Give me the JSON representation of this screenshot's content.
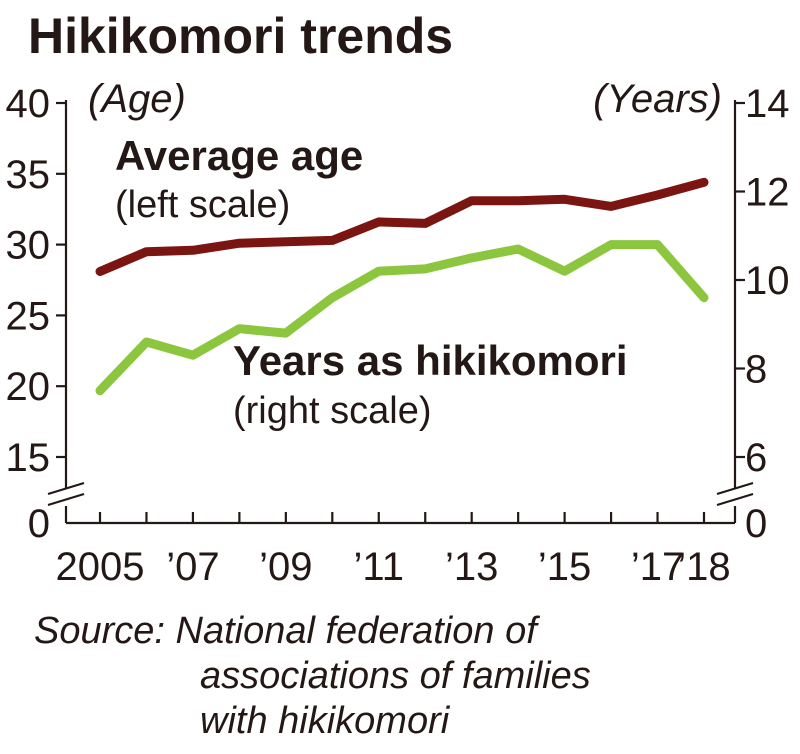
{
  "chart_data": {
    "type": "line",
    "title": "Hikikomori trends",
    "x": [
      2005,
      2006,
      2007,
      2008,
      2009,
      2010,
      2011,
      2012,
      2013,
      2014,
      2015,
      2016,
      2017,
      2018
    ],
    "x_tick_labels": [
      {
        "x": 2005,
        "label": "2005"
      },
      {
        "x": 2007,
        "label": "’07"
      },
      {
        "x": 2009,
        "label": "’09"
      },
      {
        "x": 2011,
        "label": "’11"
      },
      {
        "x": 2013,
        "label": "’13"
      },
      {
        "x": 2015,
        "label": "’15"
      },
      {
        "x": 2017,
        "label": "’17"
      },
      {
        "x": 2018,
        "label": "’18"
      }
    ],
    "left_axis": {
      "unit": "(Age)",
      "tick_labels": [
        "40",
        "35",
        "30",
        "25",
        "20",
        "15",
        "0"
      ],
      "ticks": [
        40,
        35,
        30,
        25,
        20,
        15
      ],
      "range": [
        15,
        40
      ],
      "axis_break": true
    },
    "right_axis": {
      "unit": "(Years)",
      "tick_labels": [
        "14",
        "12",
        "10",
        "8",
        "6",
        "0"
      ],
      "ticks": [
        14,
        12,
        10,
        8,
        6
      ],
      "range": [
        5,
        14
      ],
      "axis_break": true
    },
    "series": [
      {
        "name": "Average age",
        "label_line1": "Average age",
        "label_line2": "(left scale)",
        "axis": "left",
        "color": "#7a1512",
        "values": [
          28.1,
          29.5,
          29.6,
          30.1,
          30.2,
          30.3,
          31.6,
          31.5,
          33.1,
          33.1,
          33.2,
          32.7,
          33.5,
          34.4
        ]
      },
      {
        "name": "Years as hikikomori",
        "label_line1": "Years as hikikomori",
        "label_line2": "(right scale)",
        "axis": "right",
        "color": "#8cc63f",
        "values": [
          7.5,
          8.6,
          8.3,
          8.9,
          8.8,
          9.6,
          10.2,
          10.25,
          10.5,
          10.7,
          10.2,
          10.8,
          10.8,
          9.6
        ]
      }
    ],
    "source_lines": [
      "Source: National federation of",
      "associations of families",
      "with hikikomori"
    ]
  }
}
